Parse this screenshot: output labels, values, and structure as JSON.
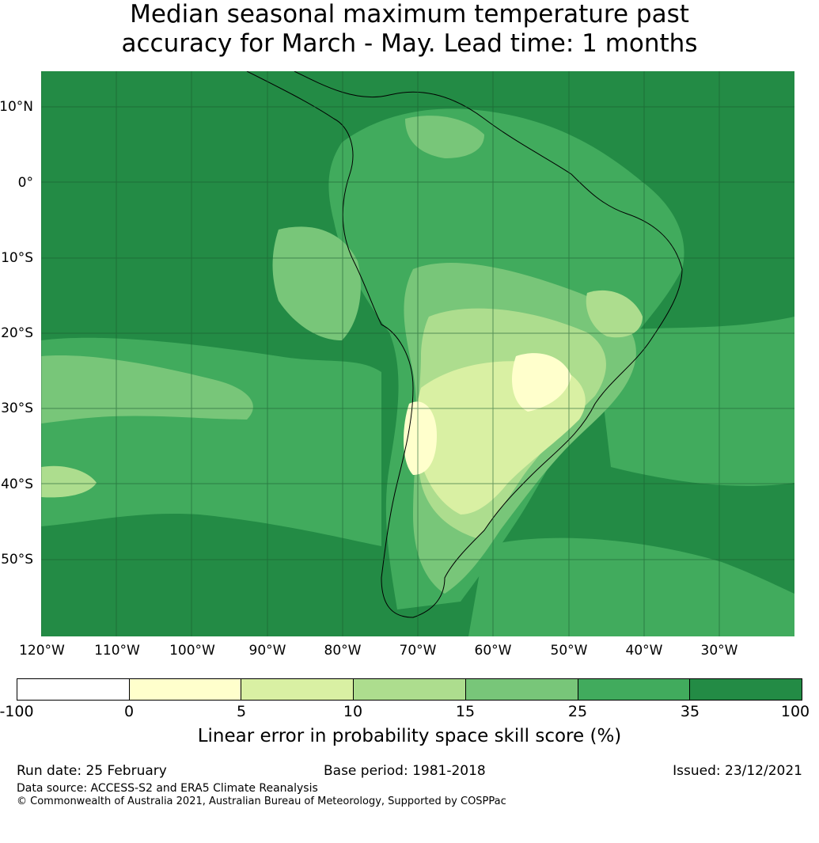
{
  "title": {
    "line1": "Median seasonal maximum temperature past",
    "line2": "accuracy for March - May. Lead time: 1 months"
  },
  "map": {
    "region": "South America",
    "lat_labels": [
      "10°N",
      "0°",
      "10°S",
      "20°S",
      "30°S",
      "40°S",
      "50°S"
    ],
    "lon_labels": [
      "120°W",
      "110°W",
      "100°W",
      "90°W",
      "80°W",
      "70°W",
      "60°W",
      "50°W",
      "40°W",
      "30°W"
    ],
    "grid": true,
    "colors": {
      "band_0_5": "#ffffcc",
      "band_5_10": "#d9f0a3",
      "band_10_15": "#addd8e",
      "band_15_25": "#78c679",
      "band_25_35": "#41ab5d",
      "band_35_100": "#238b45"
    }
  },
  "colorbar": {
    "ticks": [
      "-100",
      "0",
      "5",
      "10",
      "15",
      "25",
      "35",
      "100"
    ],
    "colors": [
      "#ffffff",
      "#ffffcc",
      "#d9f0a3",
      "#addd8e",
      "#78c679",
      "#41ab5d",
      "#238b45"
    ],
    "label": "Linear error in probability space skill score (%)"
  },
  "footer": {
    "run_date": "Run date: 25 February",
    "base_period": "Base period: 1981-2018",
    "issued": "Issued: 23/12/2021",
    "data_source": "Data source: ACCESS-S2 and ERA5 Climate Reanalysis",
    "copyright": "© Commonwealth of Australia 2021, Australian Bureau of Meteorology, Supported by COSPPac"
  }
}
